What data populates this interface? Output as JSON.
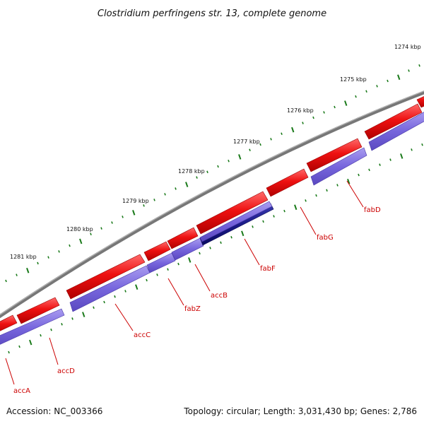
{
  "title": "Clostridium perfringens str. 13, complete genome",
  "accession": "Accession: NC_003366",
  "topology": "Topology: circular; Length: 3,031,430 bp; Genes: 2,786",
  "kbp_labels": [
    "1274 kbp",
    "1275 kbp",
    "1276 kbp",
    "1277 kbp",
    "1278 kbp",
    "1279 kbp",
    "1280 kbp",
    "1281 kbp"
  ],
  "gene_labels": [
    "accA",
    "accD",
    "accC",
    "fabZ",
    "accB",
    "fabF",
    "fabG",
    "fabD"
  ],
  "colors": {
    "backbone": "#7a7a7a",
    "forward": "#ee1111",
    "cds": "#7766dd",
    "cds_highlight": "#1a1a88",
    "tick": "#1a7a1a",
    "label": "#cc0000"
  }
}
